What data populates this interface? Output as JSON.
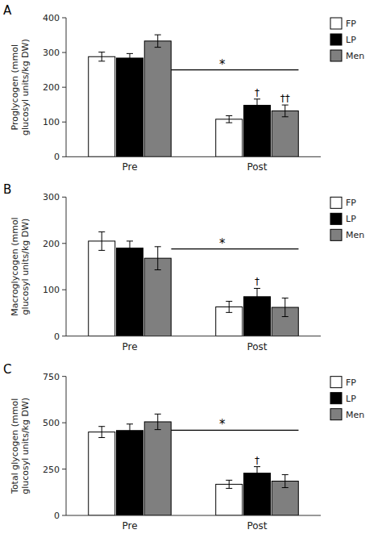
{
  "chart_data": [
    {
      "type": "bar",
      "title": "A",
      "ylabel": "Proglycogen (mmol\nglucosyl units/kg DW)",
      "categories": [
        "Pre",
        "Post"
      ],
      "series": [
        {
          "name": "FP",
          "color": "white",
          "values": [
            288,
            108
          ],
          "errors": [
            13,
            10
          ]
        },
        {
          "name": "LP",
          "color": "black",
          "values": [
            284,
            148
          ],
          "errors": [
            13,
            18
          ],
          "annotations": [
            null,
            "†"
          ]
        },
        {
          "name": "Men",
          "color": "#7f7f7f",
          "values": [
            333,
            132
          ],
          "errors": [
            18,
            17
          ],
          "annotations": [
            null,
            "††"
          ]
        }
      ],
      "significance": {
        "y": 250,
        "label": "*"
      },
      "ylim": [
        0,
        400
      ],
      "yticks": [
        0,
        100,
        200,
        300,
        400
      ],
      "legend": "right"
    },
    {
      "type": "bar",
      "title": "B",
      "ylabel": "Macroglycogen (mmol\nglucosyl units/kg DW)",
      "categories": [
        "Pre",
        "Post"
      ],
      "series": [
        {
          "name": "FP",
          "color": "white",
          "values": [
            205,
            63
          ],
          "errors": [
            20,
            12
          ]
        },
        {
          "name": "LP",
          "color": "black",
          "values": [
            190,
            85
          ],
          "errors": [
            15,
            18
          ],
          "annotations": [
            null,
            "†"
          ]
        },
        {
          "name": "Men",
          "color": "#7f7f7f",
          "values": [
            168,
            62
          ],
          "errors": [
            25,
            20
          ]
        }
      ],
      "significance": {
        "y": 188,
        "label": "*"
      },
      "ylim": [
        0,
        300
      ],
      "yticks": [
        0,
        100,
        200,
        300
      ],
      "legend": "right"
    },
    {
      "type": "bar",
      "title": "C",
      "ylabel": "Total glycogen (mmol\nglucosyl units/kg DW)",
      "categories": [
        "Pre",
        "Post"
      ],
      "series": [
        {
          "name": "FP",
          "color": "white",
          "values": [
            450,
            168
          ],
          "errors": [
            30,
            22
          ]
        },
        {
          "name": "LP",
          "color": "black",
          "values": [
            458,
            228
          ],
          "errors": [
            35,
            35
          ],
          "annotations": [
            null,
            "†"
          ]
        },
        {
          "name": "Men",
          "color": "#7f7f7f",
          "values": [
            505,
            185
          ],
          "errors": [
            42,
            35
          ]
        }
      ],
      "significance": {
        "y": 460,
        "label": "*"
      },
      "ylim": [
        0,
        750
      ],
      "yticks": [
        0,
        250,
        500,
        750
      ],
      "legend": "right"
    }
  ]
}
